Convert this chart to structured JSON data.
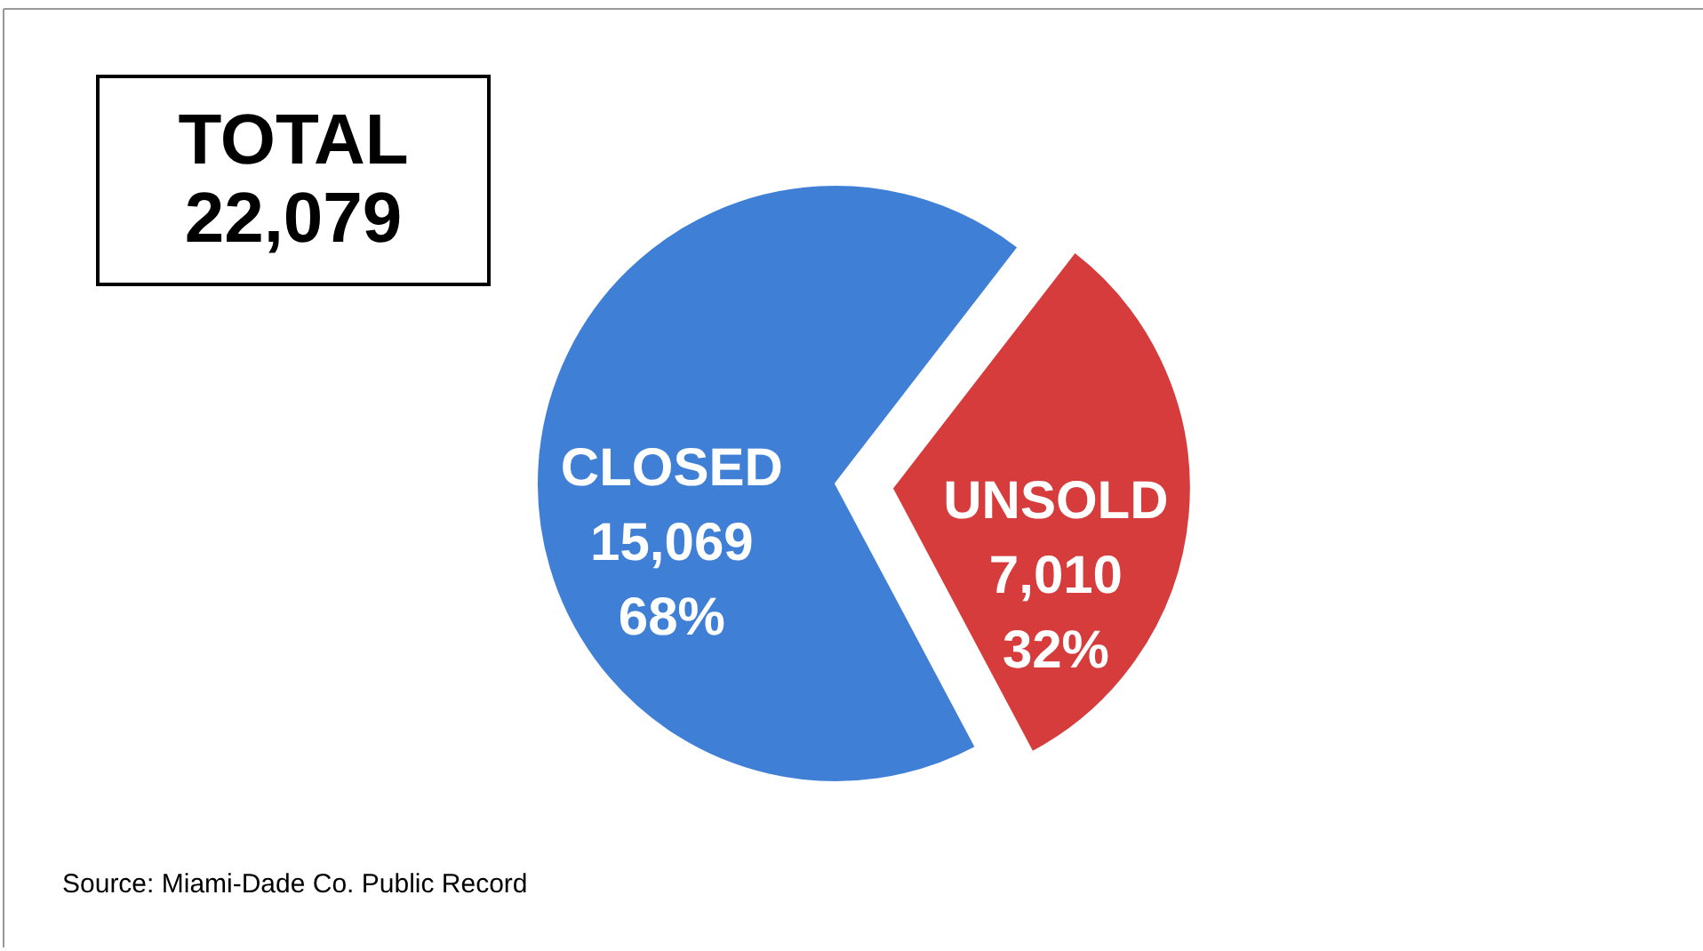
{
  "chart_data": {
    "type": "pie",
    "categories": [
      "CLOSED",
      "UNSOLD"
    ],
    "values": [
      15069,
      7010
    ],
    "value_labels": [
      "15,069\n68%",
      "7,010\n32%"
    ],
    "colors": [
      "#3f7fd6",
      "#d63c3c"
    ],
    "annotations": [
      "TOTAL\n22,079",
      "Source: Miami-Dade Co. Public Record"
    ]
  }
}
